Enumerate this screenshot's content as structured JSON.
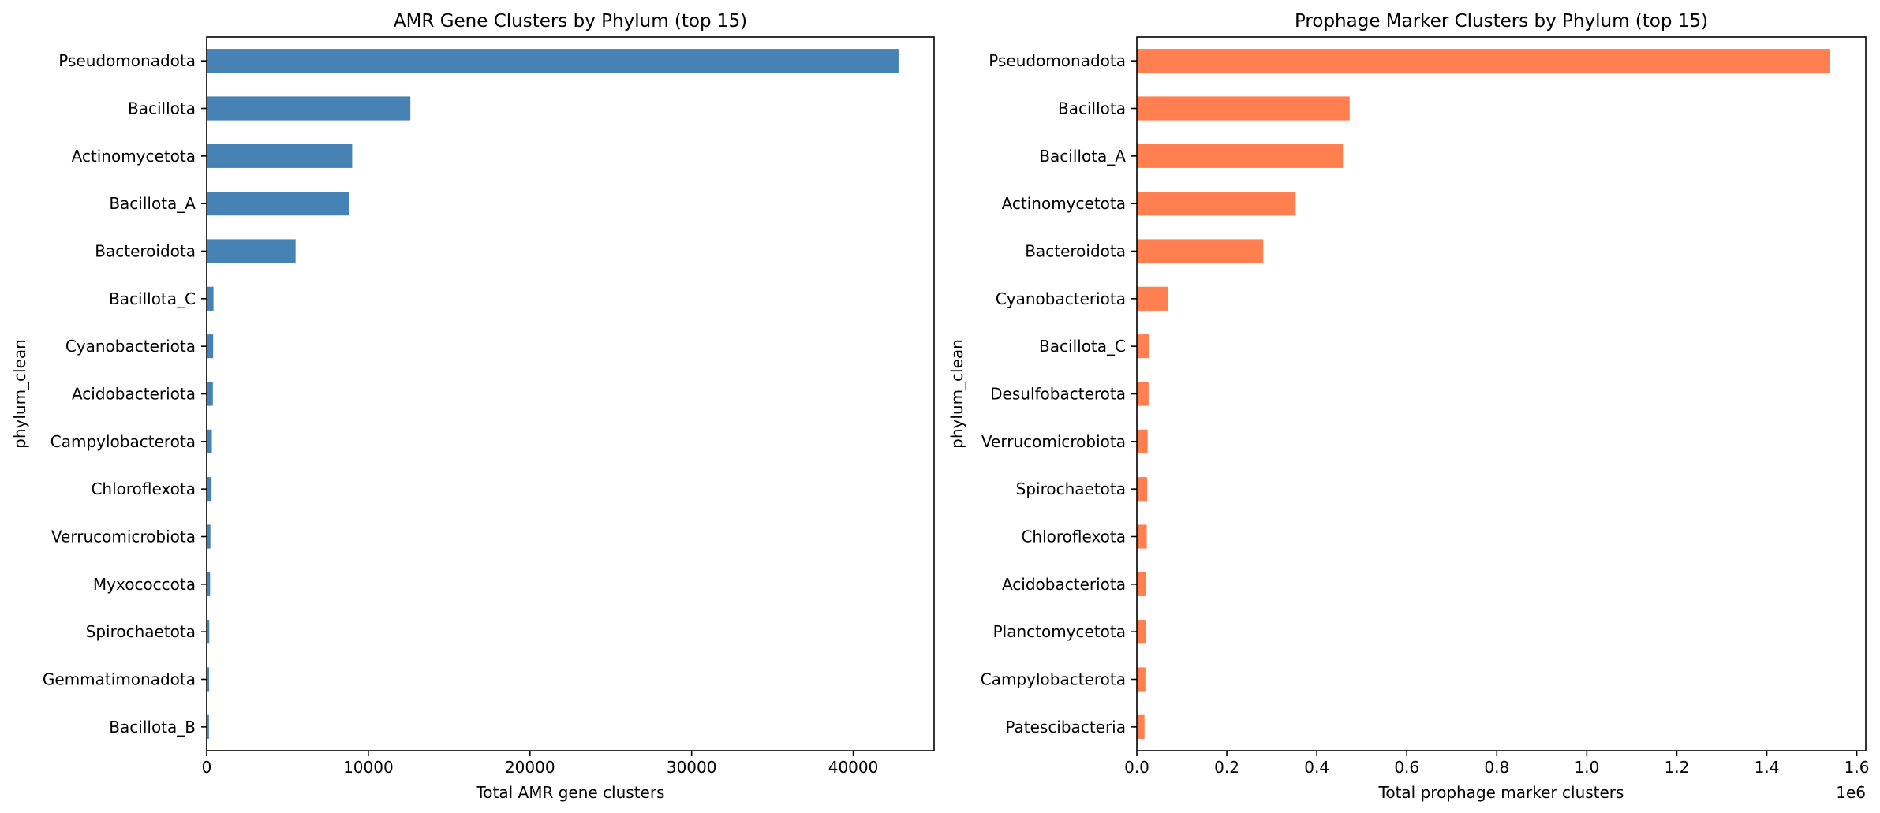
{
  "chart_data": [
    {
      "type": "bar",
      "orientation": "horizontal",
      "title": "AMR Gene Clusters by Phylum (top 15)",
      "xlabel": "Total AMR gene clusters",
      "ylabel": "phylum_clean",
      "xlim": [
        0,
        45000
      ],
      "xticks": [
        0,
        10000,
        20000,
        30000,
        40000
      ],
      "xtick_labels": [
        "0",
        "10000",
        "20000",
        "30000",
        "40000"
      ],
      "categories": [
        "Pseudomonadota",
        "Bacillota",
        "Actinomycetota",
        "Bacillota_A",
        "Bacteroidota",
        "Bacillota_C",
        "Cyanobacteriota",
        "Acidobacteriota",
        "Campylobacterota",
        "Chloroflexota",
        "Verrucomicrobiota",
        "Myxococcota",
        "Spirochaetota",
        "Gemmatimonadota",
        "Bacillota_B"
      ],
      "values": [
        42800,
        12600,
        9000,
        8800,
        5500,
        420,
        400,
        380,
        320,
        300,
        230,
        210,
        160,
        150,
        140
      ],
      "color": "#4682b4",
      "grid": false
    },
    {
      "type": "bar",
      "orientation": "horizontal",
      "title": "Prophage Marker Clusters by Phylum (top 15)",
      "xlabel": "Total prophage marker clusters",
      "ylabel": "phylum_clean",
      "xlim": [
        0,
        1.62
      ],
      "xticks": [
        0,
        0.2,
        0.4,
        0.6,
        0.8,
        1.0,
        1.2,
        1.4,
        1.6
      ],
      "xtick_labels": [
        "0.0",
        "0.2",
        "0.4",
        "0.6",
        "0.8",
        "1.0",
        "1.2",
        "1.4",
        "1.6"
      ],
      "x_offset_label": "1e6",
      "categories": [
        "Pseudomonadota",
        "Bacillota",
        "Bacillota_A",
        "Actinomycetota",
        "Bacteroidota",
        "Cyanobacteriota",
        "Bacillota_C",
        "Desulfobacterota",
        "Verrucomicrobiota",
        "Spirochaetota",
        "Chloroflexota",
        "Acidobacteriota",
        "Planctomycetota",
        "Campylobacterota",
        "Patescibacteria"
      ],
      "values": [
        1.54,
        0.473,
        0.458,
        0.353,
        0.281,
        0.07,
        0.028,
        0.026,
        0.024,
        0.023,
        0.022,
        0.021,
        0.02,
        0.019,
        0.017
      ],
      "color": "#ff7f50",
      "grid": false
    }
  ]
}
